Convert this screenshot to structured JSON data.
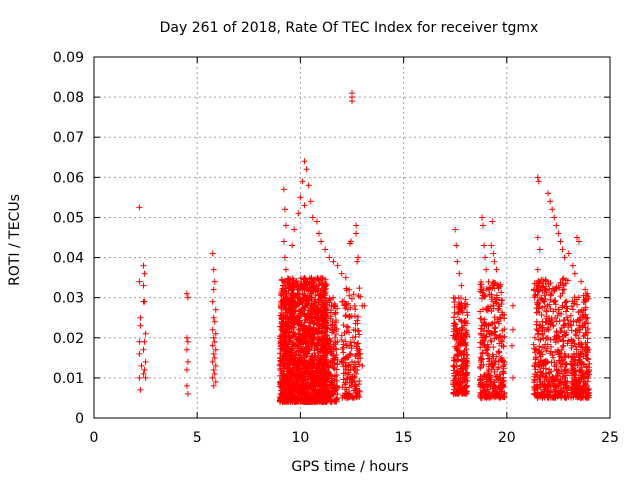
{
  "chart_data": {
    "type": "scatter",
    "title": "Day 261 of 2018, Rate Of TEC Index for receiver tgmx",
    "xlabel": "GPS time / hours",
    "ylabel": "ROTI / TECUs",
    "xlim": [
      0,
      25
    ],
    "ylim": [
      0,
      0.09
    ],
    "xticks": [
      "0",
      "5",
      "10",
      "15",
      "20",
      "25"
    ],
    "xtick_values": [
      0,
      5,
      10,
      15,
      20,
      25
    ],
    "yticks": [
      "0",
      "0.01",
      "0.02",
      "0.03",
      "0.04",
      "0.05",
      "0.06",
      "0.07",
      "0.08",
      "0.09"
    ],
    "ytick_values": [
      0,
      0.01,
      0.02,
      0.03,
      0.04,
      0.05,
      0.06,
      0.07,
      0.08,
      0.09
    ],
    "grid": true,
    "marker": "+",
    "color": "#ff0000",
    "series": [
      {
        "name": "ROTI",
        "points": [
          [
            2.2,
            0.0525
          ],
          [
            2.2,
            0.034
          ],
          [
            2.25,
            0.025
          ],
          [
            2.25,
            0.023
          ],
          [
            2.2,
            0.019
          ],
          [
            2.2,
            0.016
          ],
          [
            2.3,
            0.013
          ],
          [
            2.2,
            0.01
          ],
          [
            2.25,
            0.007
          ],
          [
            2.4,
            0.038
          ],
          [
            2.45,
            0.036
          ],
          [
            2.4,
            0.033
          ],
          [
            2.45,
            0.029
          ],
          [
            2.4,
            0.029
          ],
          [
            2.5,
            0.021
          ],
          [
            2.45,
            0.019
          ],
          [
            2.4,
            0.017
          ],
          [
            2.5,
            0.014
          ],
          [
            2.45,
            0.012
          ],
          [
            2.4,
            0.011
          ],
          [
            2.5,
            0.01
          ],
          [
            4.5,
            0.031
          ],
          [
            4.55,
            0.03
          ],
          [
            4.5,
            0.02
          ],
          [
            4.55,
            0.019
          ],
          [
            4.5,
            0.017
          ],
          [
            4.55,
            0.014
          ],
          [
            4.5,
            0.012
          ],
          [
            4.5,
            0.008
          ],
          [
            4.55,
            0.006
          ],
          [
            5.75,
            0.041
          ],
          [
            5.8,
            0.037
          ],
          [
            5.85,
            0.034
          ],
          [
            5.8,
            0.032
          ],
          [
            5.75,
            0.029
          ],
          [
            5.9,
            0.027
          ],
          [
            5.8,
            0.025
          ],
          [
            5.85,
            0.024
          ],
          [
            5.75,
            0.022
          ],
          [
            5.9,
            0.021
          ],
          [
            5.8,
            0.02
          ],
          [
            5.85,
            0.019
          ],
          [
            5.75,
            0.018
          ],
          [
            5.9,
            0.017
          ],
          [
            5.8,
            0.016
          ],
          [
            5.85,
            0.015
          ],
          [
            5.75,
            0.014
          ],
          [
            5.9,
            0.013
          ],
          [
            5.8,
            0.012
          ],
          [
            5.85,
            0.011
          ],
          [
            5.75,
            0.01
          ],
          [
            5.9,
            0.009
          ],
          [
            5.8,
            0.008
          ],
          [
            9.2,
            0.057
          ],
          [
            9.25,
            0.052
          ],
          [
            9.3,
            0.048
          ],
          [
            9.2,
            0.044
          ],
          [
            9.25,
            0.04
          ],
          [
            9.3,
            0.037
          ],
          [
            10.2,
            0.064
          ],
          [
            10.3,
            0.062
          ],
          [
            10.1,
            0.059
          ],
          [
            10.4,
            0.058
          ],
          [
            10.0,
            0.055
          ],
          [
            10.5,
            0.054
          ],
          [
            10.2,
            0.053
          ],
          [
            9.9,
            0.051
          ],
          [
            10.6,
            0.05
          ],
          [
            10.8,
            0.049
          ],
          [
            9.7,
            0.047
          ],
          [
            10.9,
            0.046
          ],
          [
            11.0,
            0.044
          ],
          [
            9.6,
            0.043
          ],
          [
            11.2,
            0.042
          ],
          [
            11.4,
            0.04
          ],
          [
            11.6,
            0.039
          ],
          [
            11.8,
            0.038
          ],
          [
            12.0,
            0.036
          ],
          [
            12.2,
            0.035
          ],
          [
            12.4,
            0.0435
          ],
          [
            12.45,
            0.044
          ],
          [
            12.7,
            0.048
          ],
          [
            12.7,
            0.046
          ],
          [
            12.8,
            0.04
          ],
          [
            12.75,
            0.039
          ],
          [
            13.0,
            0.028
          ],
          [
            13.1,
            0.028
          ],
          [
            12.5,
            0.081
          ],
          [
            12.5,
            0.08
          ],
          [
            12.5,
            0.079
          ],
          [
            12.3,
            0.018
          ],
          [
            12.4,
            0.016
          ],
          [
            12.5,
            0.014
          ],
          [
            12.6,
            0.012
          ],
          [
            12.7,
            0.011
          ],
          [
            12.8,
            0.014
          ],
          [
            12.9,
            0.016
          ],
          [
            13.0,
            0.013
          ],
          [
            12.6,
            0.01
          ],
          [
            12.5,
            0.008
          ],
          [
            12.4,
            0.006
          ],
          [
            12.3,
            0.005
          ],
          [
            17.5,
            0.047
          ],
          [
            17.55,
            0.043
          ],
          [
            17.6,
            0.039
          ],
          [
            17.7,
            0.036
          ],
          [
            17.8,
            0.033
          ],
          [
            18.8,
            0.05
          ],
          [
            18.85,
            0.048
          ],
          [
            18.9,
            0.043
          ],
          [
            18.95,
            0.04
          ],
          [
            19.0,
            0.037
          ],
          [
            19.3,
            0.049
          ],
          [
            19.25,
            0.043
          ],
          [
            19.35,
            0.041
          ],
          [
            19.4,
            0.039
          ],
          [
            19.5,
            0.037
          ],
          [
            19.6,
            0.033
          ],
          [
            20.3,
            0.028
          ],
          [
            20.3,
            0.022
          ],
          [
            20.25,
            0.018
          ],
          [
            20.3,
            0.01
          ],
          [
            21.5,
            0.06
          ],
          [
            21.55,
            0.059
          ],
          [
            21.5,
            0.045
          ],
          [
            21.6,
            0.042
          ],
          [
            21.5,
            0.037
          ],
          [
            22.0,
            0.056
          ],
          [
            22.1,
            0.054
          ],
          [
            22.2,
            0.052
          ],
          [
            22.3,
            0.05
          ],
          [
            22.4,
            0.048
          ],
          [
            22.5,
            0.046
          ],
          [
            22.6,
            0.044
          ],
          [
            22.7,
            0.042
          ],
          [
            22.8,
            0.04
          ],
          [
            23.0,
            0.041
          ],
          [
            23.2,
            0.038
          ],
          [
            23.4,
            0.045
          ],
          [
            23.5,
            0.044
          ],
          [
            23.3,
            0.036
          ],
          [
            23.6,
            0.034
          ],
          [
            23.8,
            0.032
          ],
          [
            23.9,
            0.031
          ]
        ]
      }
    ],
    "clusters": [
      {
        "x_start": 9.0,
        "x_end": 11.3,
        "y_low": 0.004,
        "y_high": 0.035,
        "density": 1800
      },
      {
        "x_start": 11.0,
        "x_end": 11.8,
        "y_low": 0.004,
        "y_high": 0.03,
        "density": 280
      },
      {
        "x_start": 12.0,
        "x_end": 12.9,
        "y_low": 0.005,
        "y_high": 0.033,
        "density": 170
      },
      {
        "x_start": 17.4,
        "x_end": 18.1,
        "y_low": 0.006,
        "y_high": 0.03,
        "density": 260
      },
      {
        "x_start": 18.7,
        "x_end": 19.9,
        "y_low": 0.005,
        "y_high": 0.034,
        "density": 340
      },
      {
        "x_start": 21.3,
        "x_end": 23.0,
        "y_low": 0.005,
        "y_high": 0.035,
        "density": 470
      },
      {
        "x_start": 23.1,
        "x_end": 24.0,
        "y_low": 0.005,
        "y_high": 0.031,
        "density": 300
      }
    ]
  }
}
